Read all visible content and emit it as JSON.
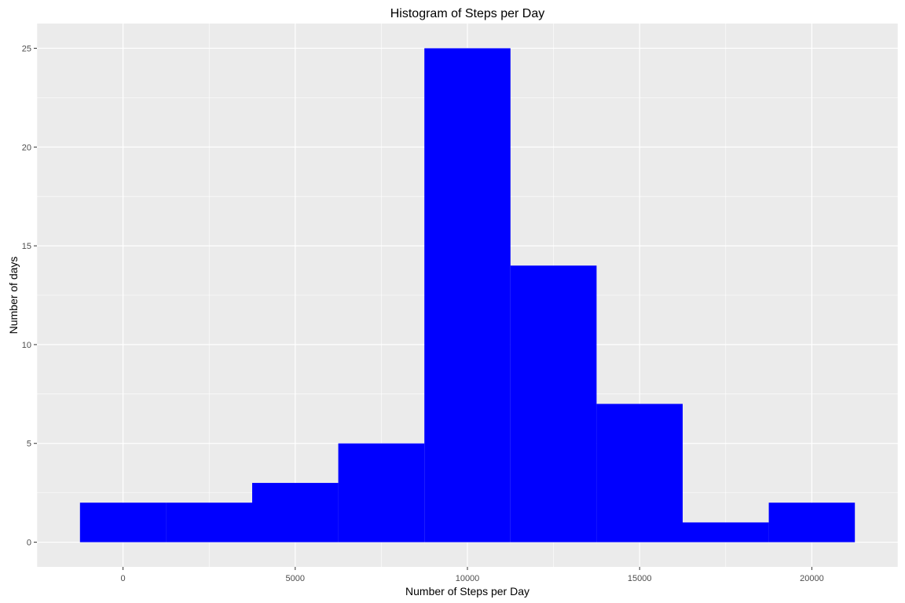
{
  "chart_data": {
    "type": "bar",
    "title": "Histogram of Steps per Day",
    "xlabel": "Number of Steps per Day",
    "ylabel": "Number of days",
    "bins": [
      {
        "x0": -1250,
        "x1": 1250,
        "count": 2
      },
      {
        "x0": 1250,
        "x1": 3750,
        "count": 2
      },
      {
        "x0": 3750,
        "x1": 6250,
        "count": 3
      },
      {
        "x0": 6250,
        "x1": 8750,
        "count": 5
      },
      {
        "x0": 8750,
        "x1": 11250,
        "count": 25
      },
      {
        "x0": 11250,
        "x1": 13750,
        "count": 14
      },
      {
        "x0": 13750,
        "x1": 16250,
        "count": 7
      },
      {
        "x0": 16250,
        "x1": 18750,
        "count": 1
      },
      {
        "x0": 18750,
        "x1": 21250,
        "count": 2
      }
    ],
    "xlim": [
      -2500,
      22500
    ],
    "ylim": [
      -1.25,
      26.25
    ],
    "x_ticks": [
      0,
      5000,
      10000,
      15000,
      20000
    ],
    "x_tick_labels": [
      "0",
      "5000",
      "10000",
      "15000",
      "20000"
    ],
    "y_ticks": [
      0,
      5,
      10,
      15,
      20,
      25
    ],
    "y_tick_labels": [
      "0",
      "5",
      "10",
      "15",
      "20",
      "25"
    ],
    "grid": true,
    "legend": "none",
    "bar_color": "#0000FF",
    "panel_color": "#EBEBEB",
    "grid_color": "#FFFFFF"
  }
}
